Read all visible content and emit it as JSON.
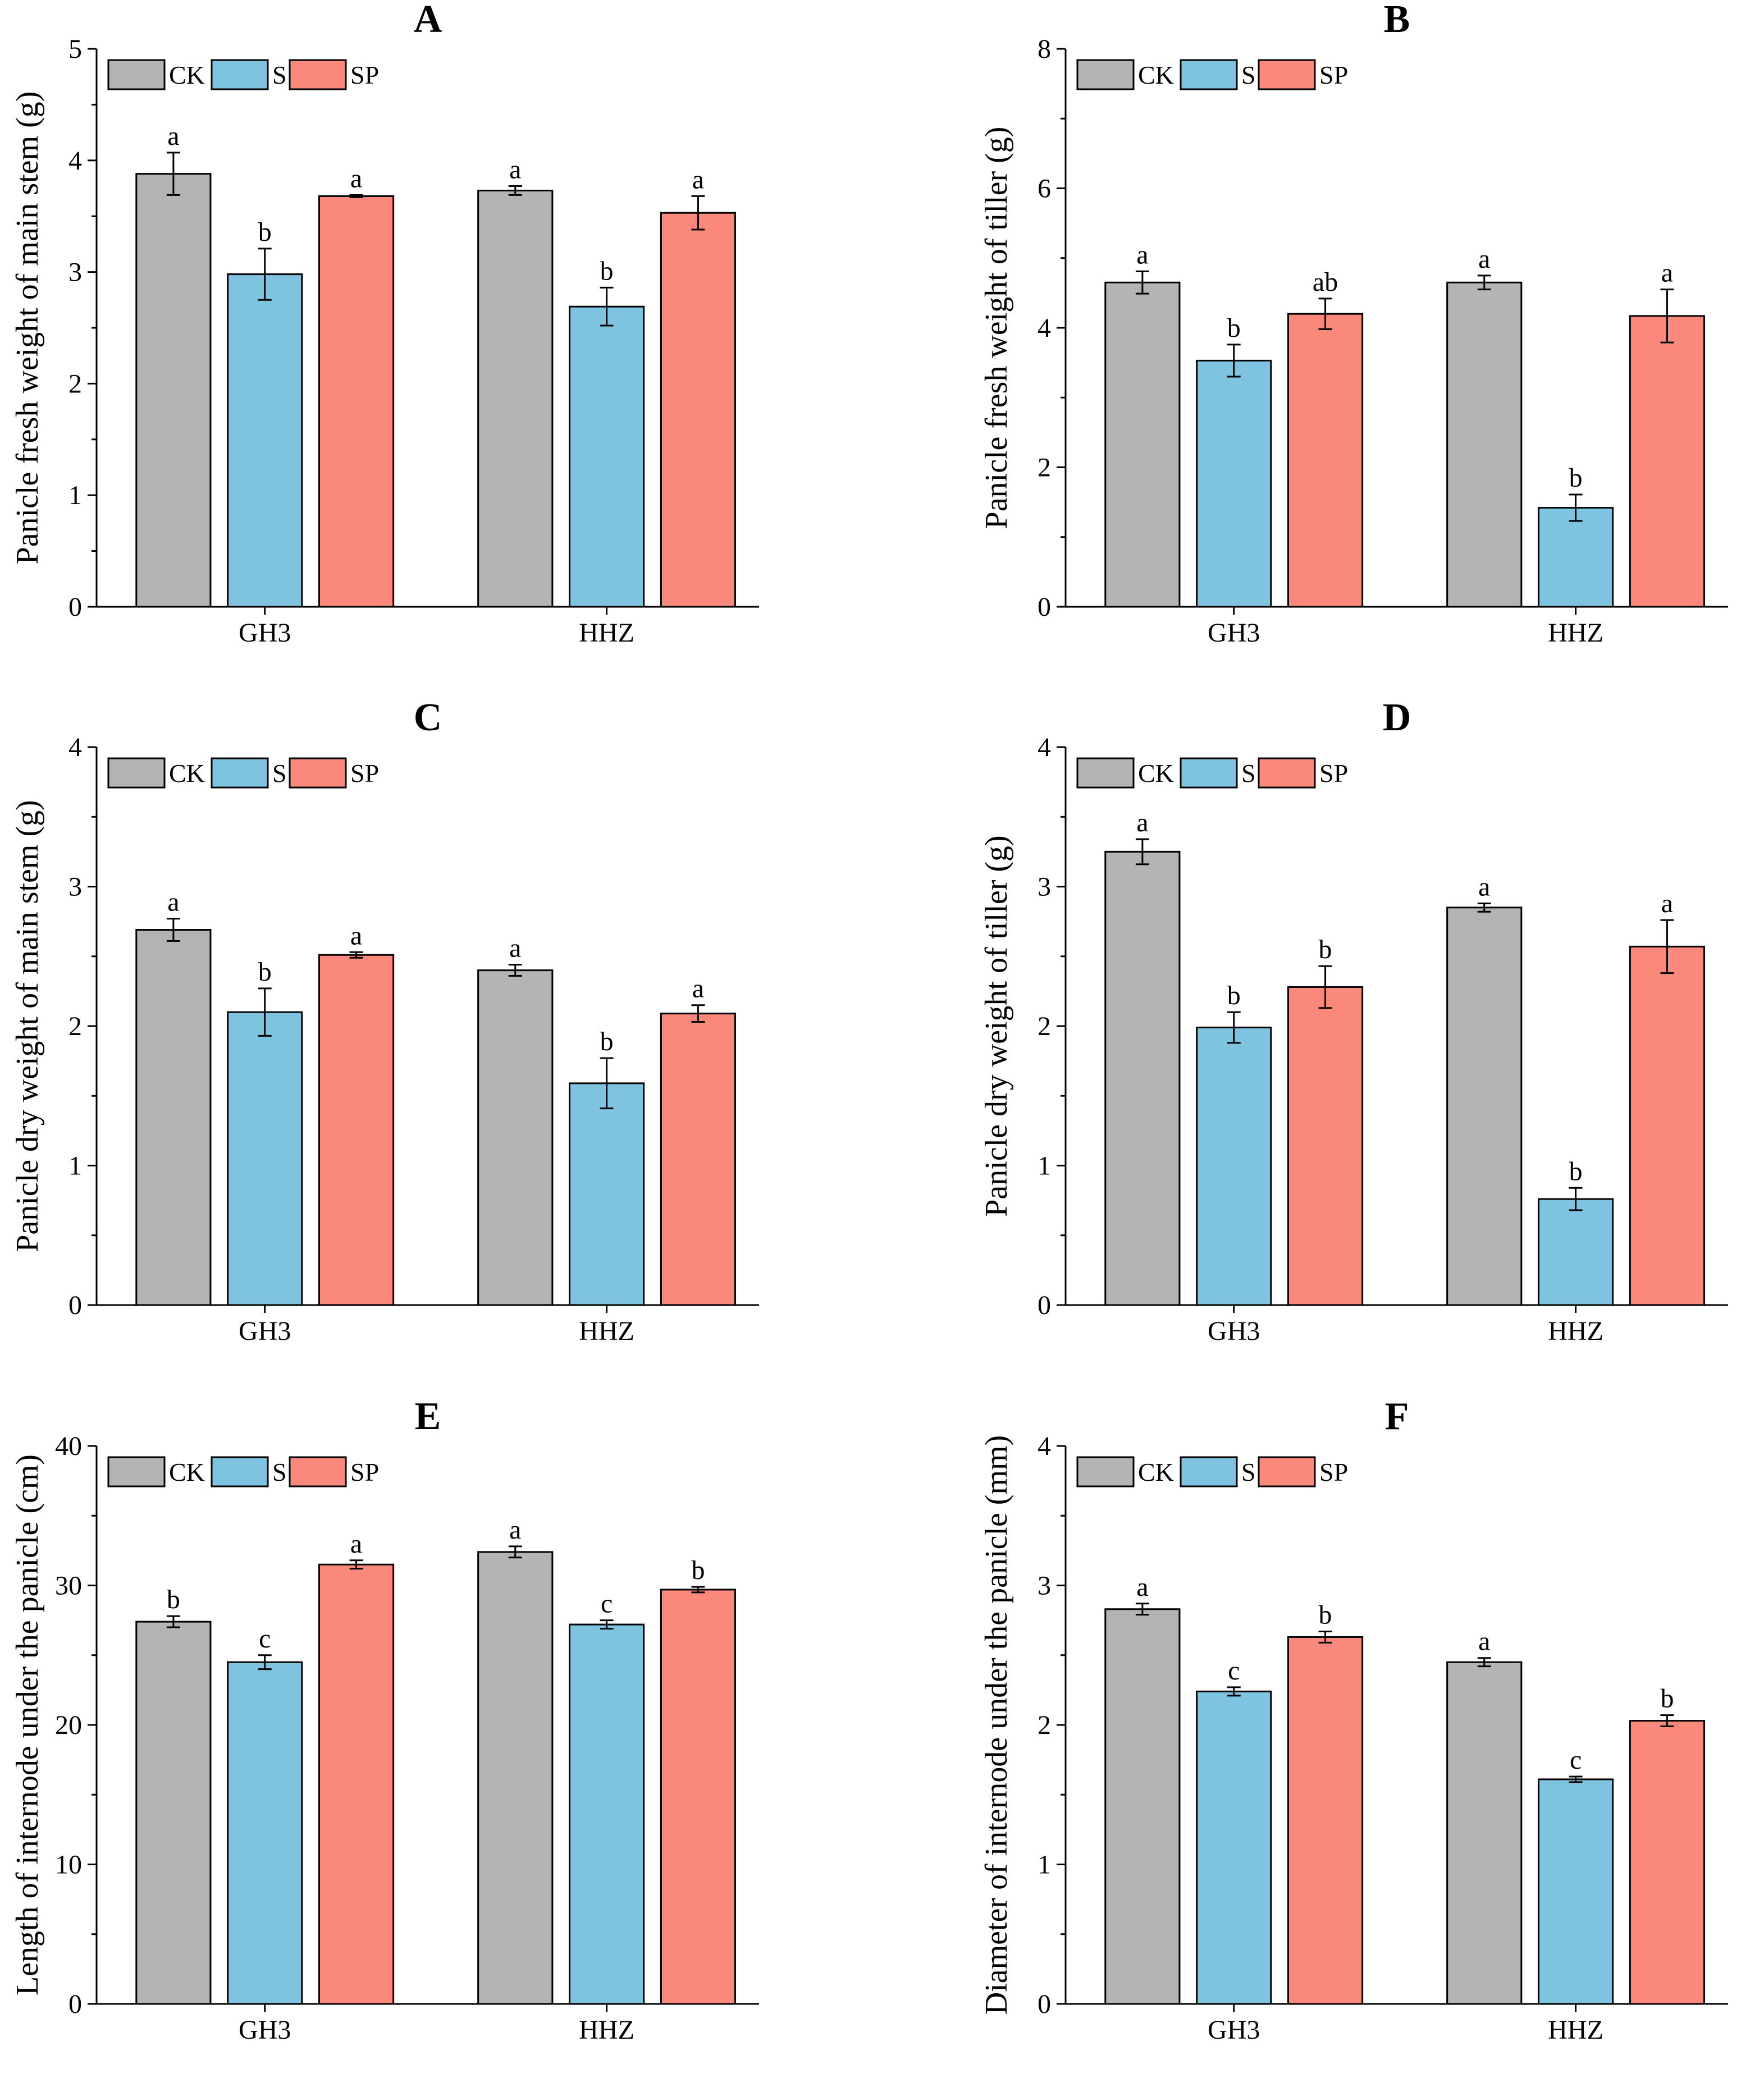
{
  "colors": {
    "CK": "#b4b4b4",
    "S": "#7ec4e0",
    "SP": "#fa897b"
  },
  "chart_data": [
    {
      "panel": "A",
      "type": "bar",
      "title": "A",
      "ylabel": "Panicle fresh weight of main stem (g)",
      "ylim": [
        0,
        5
      ],
      "yticks": [
        0,
        1,
        2,
        3,
        4,
        5
      ],
      "categories": [
        "GH3",
        "HHZ"
      ],
      "legend": [
        "CK",
        "S",
        "SP"
      ],
      "legend_position": "top-left",
      "series": [
        {
          "name": "CK",
          "values": [
            3.88,
            3.73
          ],
          "errors": [
            0.19,
            0.04
          ],
          "letters": [
            "a",
            "a"
          ]
        },
        {
          "name": "S",
          "values": [
            2.98,
            2.69
          ],
          "errors": [
            0.23,
            0.17
          ],
          "letters": [
            "b",
            "b"
          ]
        },
        {
          "name": "SP",
          "values": [
            3.68,
            3.53
          ],
          "errors": [
            0.01,
            0.15
          ],
          "letters": [
            "a",
            "a"
          ]
        }
      ]
    },
    {
      "panel": "B",
      "type": "bar",
      "title": "B",
      "ylabel": "Panicle fresh weight of tiller (g)",
      "ylim": [
        0,
        8
      ],
      "yticks": [
        0,
        2,
        4,
        6,
        8
      ],
      "categories": [
        "GH3",
        "HHZ"
      ],
      "legend": [
        "CK",
        "S",
        "SP"
      ],
      "legend_position": "top-left",
      "series": [
        {
          "name": "CK",
          "values": [
            4.65,
            4.65
          ],
          "errors": [
            0.16,
            0.1
          ],
          "letters": [
            "a",
            "a"
          ]
        },
        {
          "name": "S",
          "values": [
            3.53,
            1.42
          ],
          "errors": [
            0.23,
            0.19
          ],
          "letters": [
            "b",
            "b"
          ]
        },
        {
          "name": "SP",
          "values": [
            4.2,
            4.17
          ],
          "errors": [
            0.22,
            0.38
          ],
          "letters": [
            "ab",
            "a"
          ]
        }
      ]
    },
    {
      "panel": "C",
      "type": "bar",
      "title": "C",
      "ylabel": "Panicle dry weight of main stem (g)",
      "ylim": [
        0,
        4
      ],
      "yticks": [
        0,
        1,
        2,
        3,
        4
      ],
      "categories": [
        "GH3",
        "HHZ"
      ],
      "legend": [
        "CK",
        "S",
        "SP"
      ],
      "legend_position": "top-left",
      "series": [
        {
          "name": "CK",
          "values": [
            2.69,
            2.4
          ],
          "errors": [
            0.08,
            0.04
          ],
          "letters": [
            "a",
            "a"
          ]
        },
        {
          "name": "S",
          "values": [
            2.1,
            1.59
          ],
          "errors": [
            0.17,
            0.18
          ],
          "letters": [
            "b",
            "b"
          ]
        },
        {
          "name": "SP",
          "values": [
            2.51,
            2.09
          ],
          "errors": [
            0.02,
            0.06
          ],
          "letters": [
            "a",
            "a"
          ]
        }
      ]
    },
    {
      "panel": "D",
      "type": "bar",
      "title": "D",
      "ylabel": "Panicle dry weight of tiller (g)",
      "ylim": [
        0,
        4
      ],
      "yticks": [
        0,
        1,
        2,
        3,
        4
      ],
      "categories": [
        "GH3",
        "HHZ"
      ],
      "legend": [
        "CK",
        "S",
        "SP"
      ],
      "legend_position": "top-left",
      "series": [
        {
          "name": "CK",
          "values": [
            3.25,
            2.85
          ],
          "errors": [
            0.09,
            0.03
          ],
          "letters": [
            "a",
            "a"
          ]
        },
        {
          "name": "S",
          "values": [
            1.99,
            0.76
          ],
          "errors": [
            0.11,
            0.08
          ],
          "letters": [
            "b",
            "b"
          ]
        },
        {
          "name": "SP",
          "values": [
            2.28,
            2.57
          ],
          "errors": [
            0.15,
            0.19
          ],
          "letters": [
            "b",
            "a"
          ]
        }
      ]
    },
    {
      "panel": "E",
      "type": "bar",
      "title": "E",
      "ylabel": "Length of internode under the panicle (cm)",
      "ylim": [
        0,
        40
      ],
      "yticks": [
        0,
        10,
        20,
        30,
        40
      ],
      "categories": [
        "GH3",
        "HHZ"
      ],
      "legend": [
        "CK",
        "S",
        "SP"
      ],
      "legend_position": "top-left",
      "series": [
        {
          "name": "CK",
          "values": [
            27.4,
            32.4
          ],
          "errors": [
            0.4,
            0.4
          ],
          "letters": [
            "b",
            "a"
          ]
        },
        {
          "name": "S",
          "values": [
            24.5,
            27.2
          ],
          "errors": [
            0.5,
            0.3
          ],
          "letters": [
            "c",
            "c"
          ]
        },
        {
          "name": "SP",
          "values": [
            31.5,
            29.7
          ],
          "errors": [
            0.3,
            0.2
          ],
          "letters": [
            "a",
            "b"
          ]
        }
      ]
    },
    {
      "panel": "F",
      "type": "bar",
      "title": "F",
      "ylabel": "Diameter of internode under the panicle (mm)",
      "ylim": [
        0,
        4
      ],
      "yticks": [
        0,
        1,
        2,
        3,
        4
      ],
      "categories": [
        "GH3",
        "HHZ"
      ],
      "legend": [
        "CK",
        "S",
        "SP"
      ],
      "legend_position": "top-left",
      "series": [
        {
          "name": "CK",
          "values": [
            2.83,
            2.45
          ],
          "errors": [
            0.04,
            0.03
          ],
          "letters": [
            "a",
            "a"
          ]
        },
        {
          "name": "S",
          "values": [
            2.24,
            1.61
          ],
          "errors": [
            0.03,
            0.02
          ],
          "letters": [
            "c",
            "c"
          ]
        },
        {
          "name": "SP",
          "values": [
            2.63,
            2.03
          ],
          "errors": [
            0.04,
            0.04
          ],
          "letters": [
            "b",
            "b"
          ]
        }
      ]
    }
  ]
}
